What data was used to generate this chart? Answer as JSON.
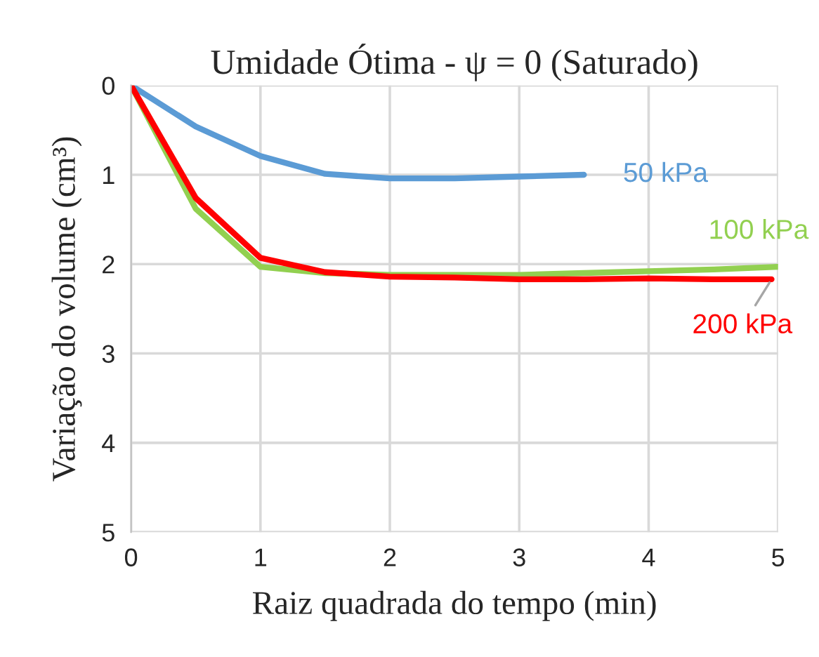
{
  "chart_data": {
    "type": "line",
    "title": "Umidade Ótima - ψ = 0 (Saturado)",
    "xlabel": "Raiz quadrada do tempo (min)",
    "ylabel": "Variação do volume (cm³)",
    "x": [
      0,
      0.5,
      1,
      1.5,
      2,
      2.5,
      3,
      3.5,
      4,
      4.5,
      5
    ],
    "series": [
      {
        "name": "50 kPa",
        "color": "#5b9bd5",
        "x": [
          0,
          0.5,
          1,
          1.5,
          2,
          2.5,
          3,
          3.5
        ],
        "values": [
          0,
          0.46,
          0.79,
          0.99,
          1.04,
          1.04,
          1.02,
          1.0
        ]
      },
      {
        "name": "100 kPa",
        "color": "#92d050",
        "values": [
          0,
          1.38,
          2.03,
          2.1,
          2.12,
          2.12,
          2.12,
          2.1,
          2.08,
          2.06,
          2.03
        ]
      },
      {
        "name": "200 kPa",
        "color": "#ff0000",
        "x": [
          0,
          0.5,
          1,
          1.5,
          2,
          2.5,
          3,
          3.5,
          4,
          4.5,
          4.95
        ],
        "values": [
          0,
          1.26,
          1.93,
          2.09,
          2.14,
          2.15,
          2.17,
          2.17,
          2.16,
          2.17,
          2.17
        ]
      }
    ],
    "xlim": [
      0,
      5
    ],
    "xticks": [
      0,
      1,
      2,
      3,
      4,
      5
    ],
    "ylim": [
      5,
      0
    ],
    "yticks": [
      0,
      1,
      2,
      3,
      4,
      5
    ],
    "grid": true,
    "legend": false,
    "marker": "none",
    "line_style": "solid"
  }
}
